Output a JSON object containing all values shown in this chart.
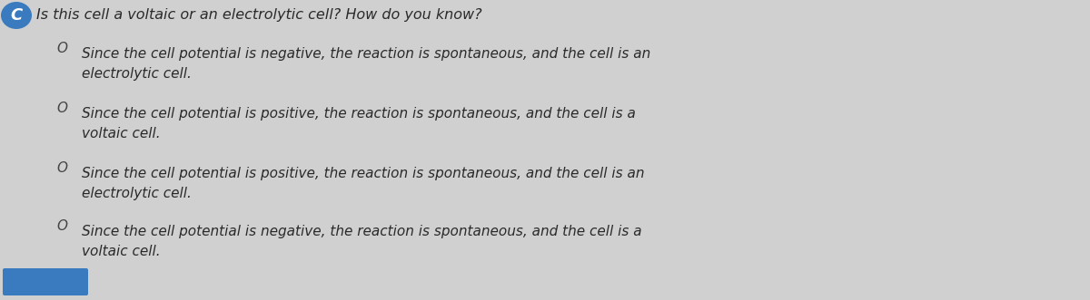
{
  "background_color": "#d0d0d0",
  "title_icon_label": "C",
  "title_text": "Is this cell a voltaic or an electrolytic cell? How do you know?",
  "title_fontsize": 11.5,
  "options": [
    {
      "line1": "Since the cell potential is negative, the reaction is spontaneous, and the cell is an",
      "line2": "electrolytic cell."
    },
    {
      "line1": "Since the cell potential is positive, the reaction is spontaneous, and the cell is a",
      "line2": "voltaic cell."
    },
    {
      "line1": "Since the cell potential is positive, the reaction is spontaneous, and the cell is an",
      "line2": "electrolytic cell."
    },
    {
      "line1": "Since the cell potential is negative, the reaction is spontaneous, and the cell is a",
      "line2": "voltaic cell."
    }
  ],
  "option_fontsize": 11.0,
  "text_color": "#2a2a2a",
  "bullet_color": "#444444",
  "icon_bg_color": "#3a7bbf",
  "icon_text_color": "#ffffff",
  "next_button_color": "#3a7bbf",
  "font": "DejaVu Sans"
}
